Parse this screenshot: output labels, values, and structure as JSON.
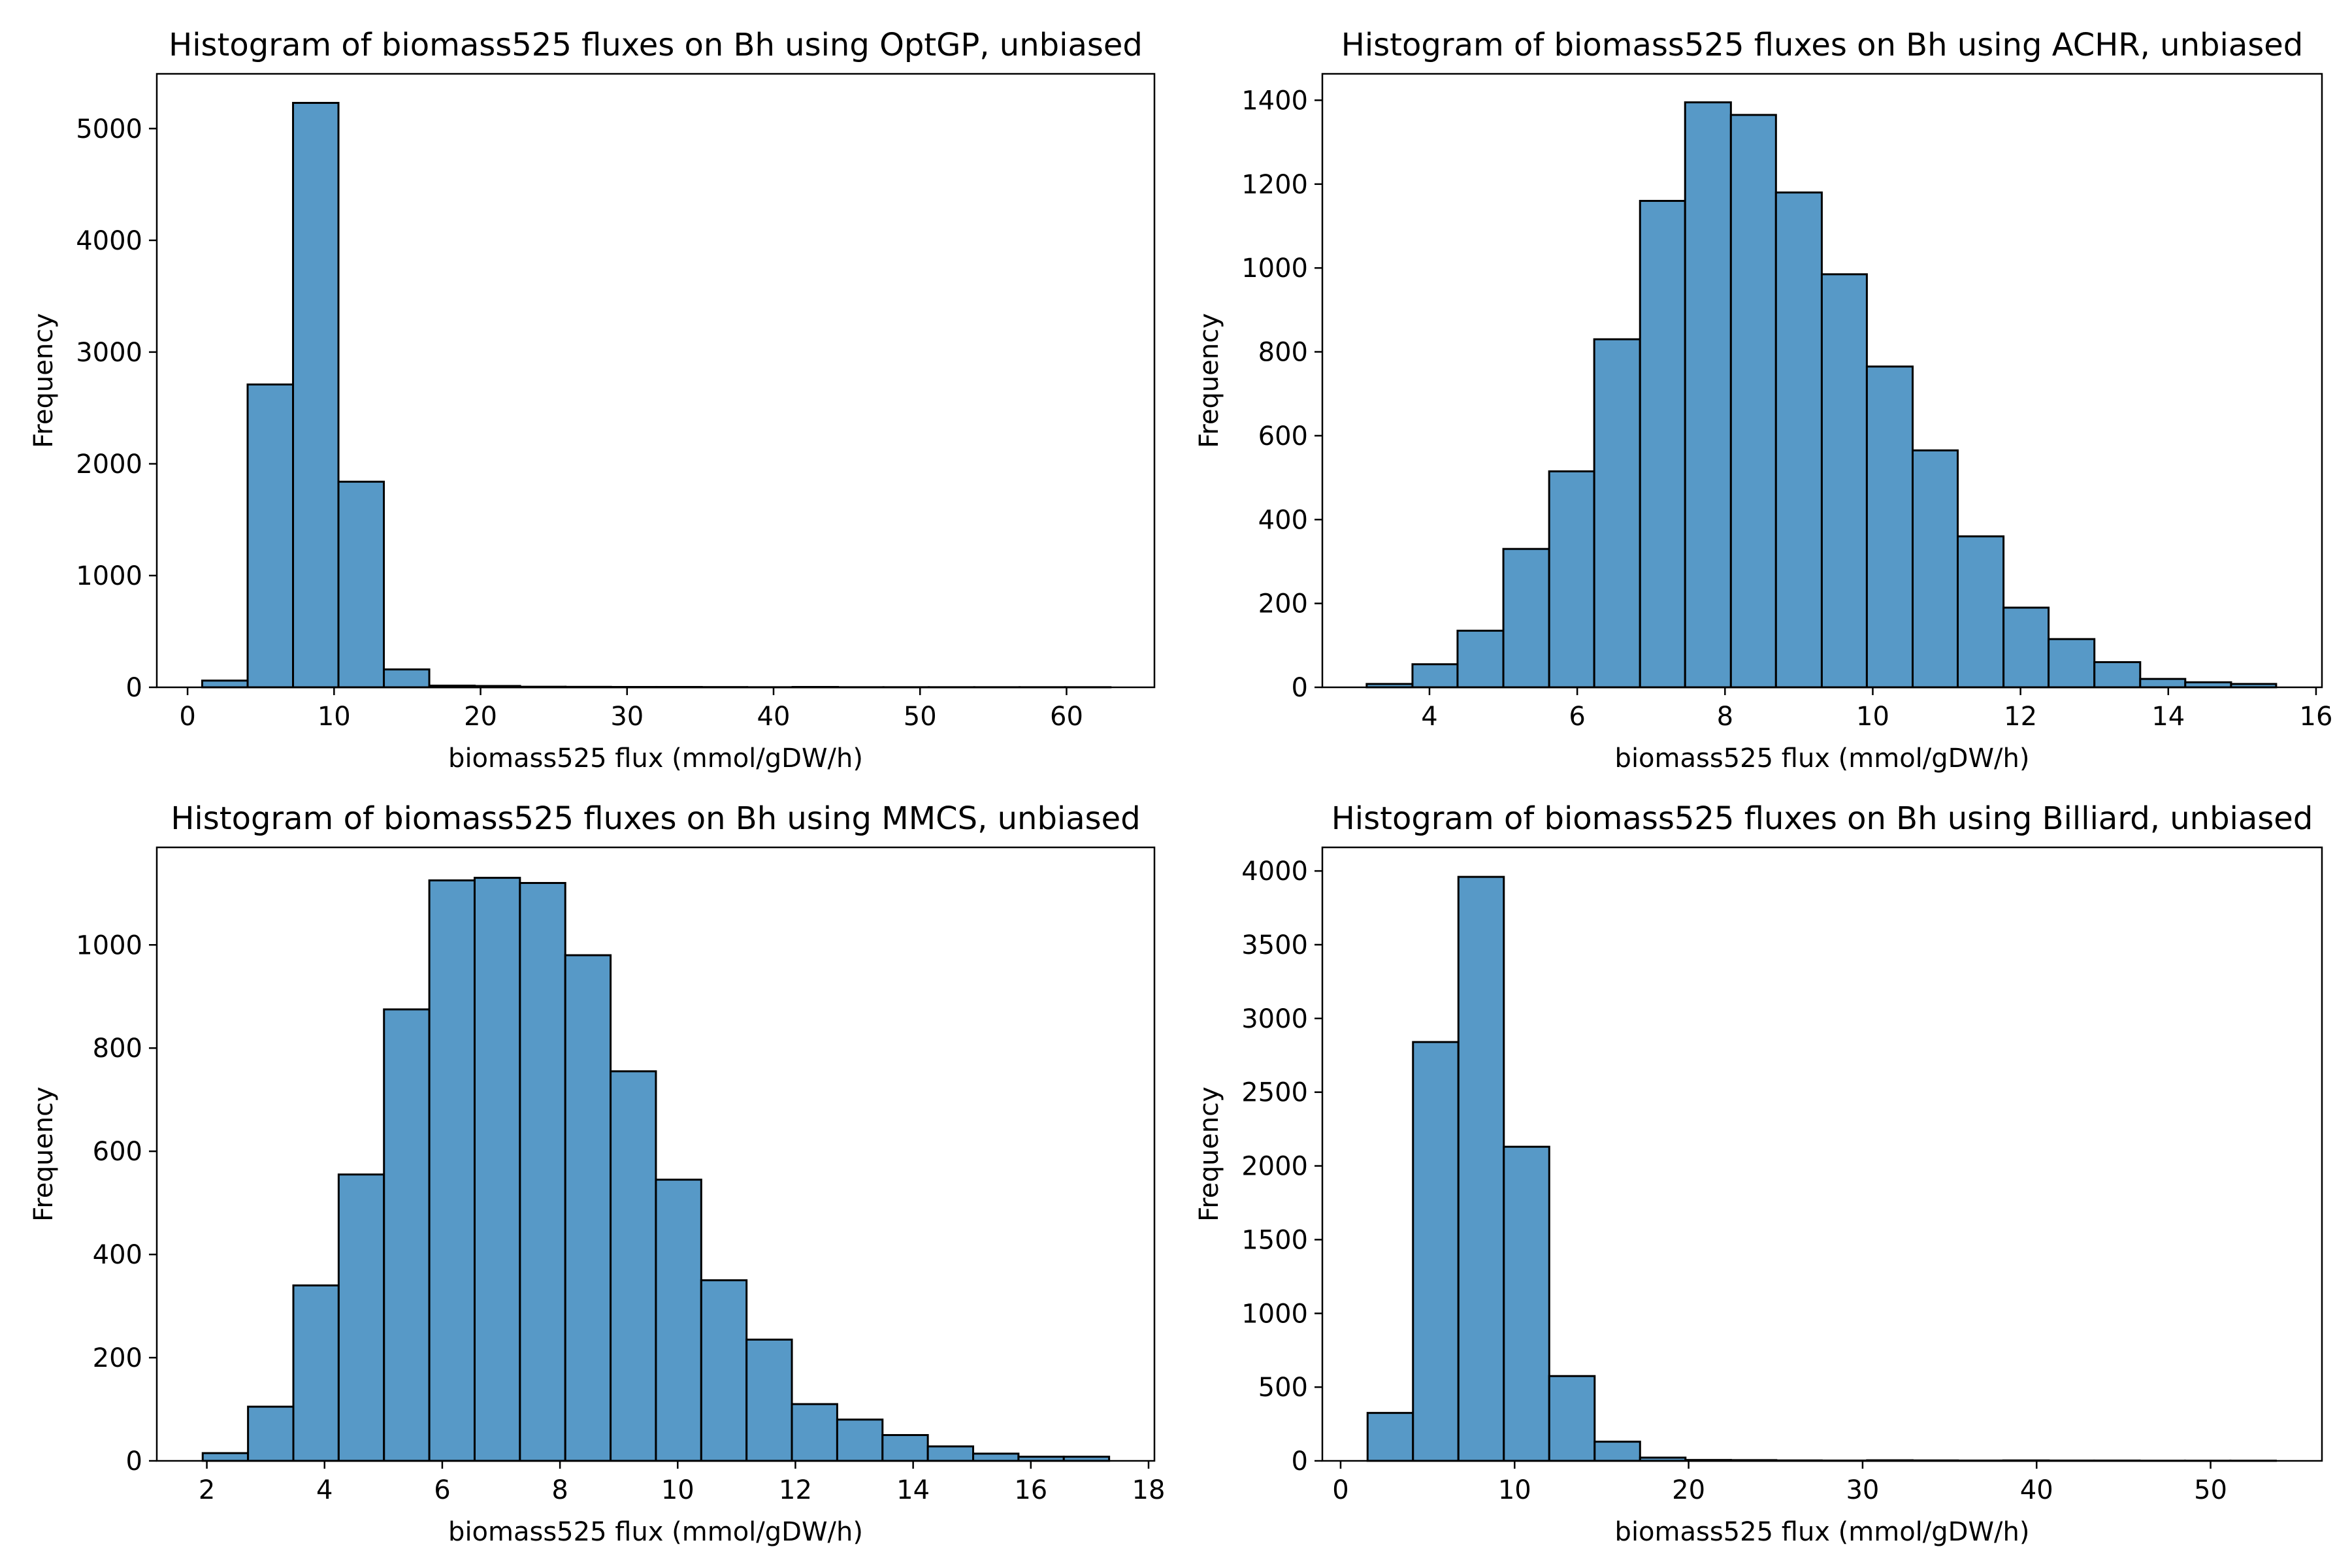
{
  "colors": {
    "bar_fill": "#5799c7",
    "bar_edge": "#000000"
  },
  "chart_data": [
    {
      "type": "bar",
      "title": "Histogram of biomass525 fluxes on Bh using OptGP, unbiased",
      "xlabel": "biomass525 flux (mmol/gDW/h)",
      "ylabel": "Frequency",
      "xlim": [
        -2.1,
        66.0
      ],
      "ylim": [
        0,
        5490
      ],
      "xticks": [
        0,
        10,
        20,
        30,
        40,
        50,
        60
      ],
      "yticks": [
        0,
        1000,
        2000,
        3000,
        4000,
        5000
      ],
      "bin_edges": [
        1.0,
        4.1,
        7.2,
        10.3,
        13.4,
        16.5,
        19.6,
        22.7,
        25.8,
        28.9,
        32.0,
        35.1,
        38.2,
        41.3,
        44.4,
        47.5,
        50.6,
        53.7,
        56.8,
        59.9,
        63.0
      ],
      "values": [
        60,
        2710,
        5230,
        1840,
        160,
        15,
        12,
        5,
        4,
        3,
        3,
        2,
        1,
        3,
        1,
        1,
        1,
        1,
        1,
        1
      ],
      "grid": false
    },
    {
      "type": "bar",
      "title": "Histogram of biomass525 fluxes on Bh using ACHR, unbiased",
      "xlabel": "biomass525 flux (mmol/gDW/h)",
      "ylabel": "Frequency",
      "xlim": [
        2.55,
        16.08
      ],
      "ylim": [
        0,
        1463
      ],
      "xticks": [
        4,
        6,
        8,
        10,
        12,
        14,
        16
      ],
      "yticks": [
        0,
        200,
        400,
        600,
        800,
        1000,
        1200,
        1400
      ],
      "bin_edges": [
        3.15,
        3.77,
        4.38,
        5.0,
        5.62,
        6.23,
        6.85,
        7.46,
        8.08,
        8.69,
        9.31,
        9.92,
        10.54,
        11.15,
        11.77,
        12.38,
        13.0,
        13.62,
        14.23,
        14.85,
        15.46
      ],
      "values": [
        8,
        55,
        135,
        330,
        515,
        830,
        1160,
        1395,
        1365,
        1180,
        985,
        765,
        565,
        360,
        190,
        115,
        60,
        20,
        12,
        8
      ],
      "grid": false
    },
    {
      "type": "bar",
      "title": "Histogram of biomass525 fluxes on Bh using MMCS, unbiased",
      "xlabel": "biomass525 flux (mmol/gDW/h)",
      "ylabel": "Frequency",
      "xlim": [
        1.15,
        18.1
      ],
      "ylim": [
        0,
        1189
      ],
      "xticks": [
        2,
        4,
        6,
        8,
        10,
        12,
        14,
        16,
        18
      ],
      "yticks": [
        0,
        200,
        400,
        600,
        800,
        1000
      ],
      "bin_edges": [
        1.93,
        2.7,
        3.47,
        4.24,
        5.01,
        5.78,
        6.55,
        7.32,
        8.09,
        8.86,
        9.63,
        10.4,
        11.17,
        11.94,
        12.71,
        13.48,
        14.25,
        15.02,
        15.79,
        16.56,
        17.33
      ],
      "values": [
        15,
        105,
        340,
        555,
        875,
        1125,
        1130,
        1120,
        980,
        755,
        545,
        350,
        235,
        110,
        80,
        50,
        28,
        14,
        8,
        8
      ],
      "grid": false
    },
    {
      "type": "bar",
      "title": "Histogram of biomass525 fluxes on Bh using Billiard, unbiased",
      "xlabel": "biomass525 flux (mmol/gDW/h)",
      "ylabel": "Frequency",
      "xlim": [
        -1.05,
        56.4
      ],
      "ylim": [
        0,
        4160
      ],
      "xticks": [
        0,
        10,
        20,
        30,
        40,
        50
      ],
      "yticks": [
        0,
        500,
        1000,
        1500,
        2000,
        2500,
        3000,
        3500,
        4000
      ],
      "bin_edges": [
        1.55,
        4.16,
        6.77,
        9.38,
        11.99,
        14.6,
        17.21,
        19.82,
        22.43,
        25.04,
        27.65,
        30.26,
        32.87,
        35.48,
        38.09,
        40.7,
        43.31,
        45.92,
        48.53,
        51.14,
        53.75
      ],
      "values": [
        325,
        2840,
        3960,
        2130,
        575,
        130,
        22,
        6,
        5,
        3,
        2,
        4,
        3,
        2,
        3,
        2,
        2,
        1,
        1,
        1
      ],
      "grid": false
    }
  ]
}
